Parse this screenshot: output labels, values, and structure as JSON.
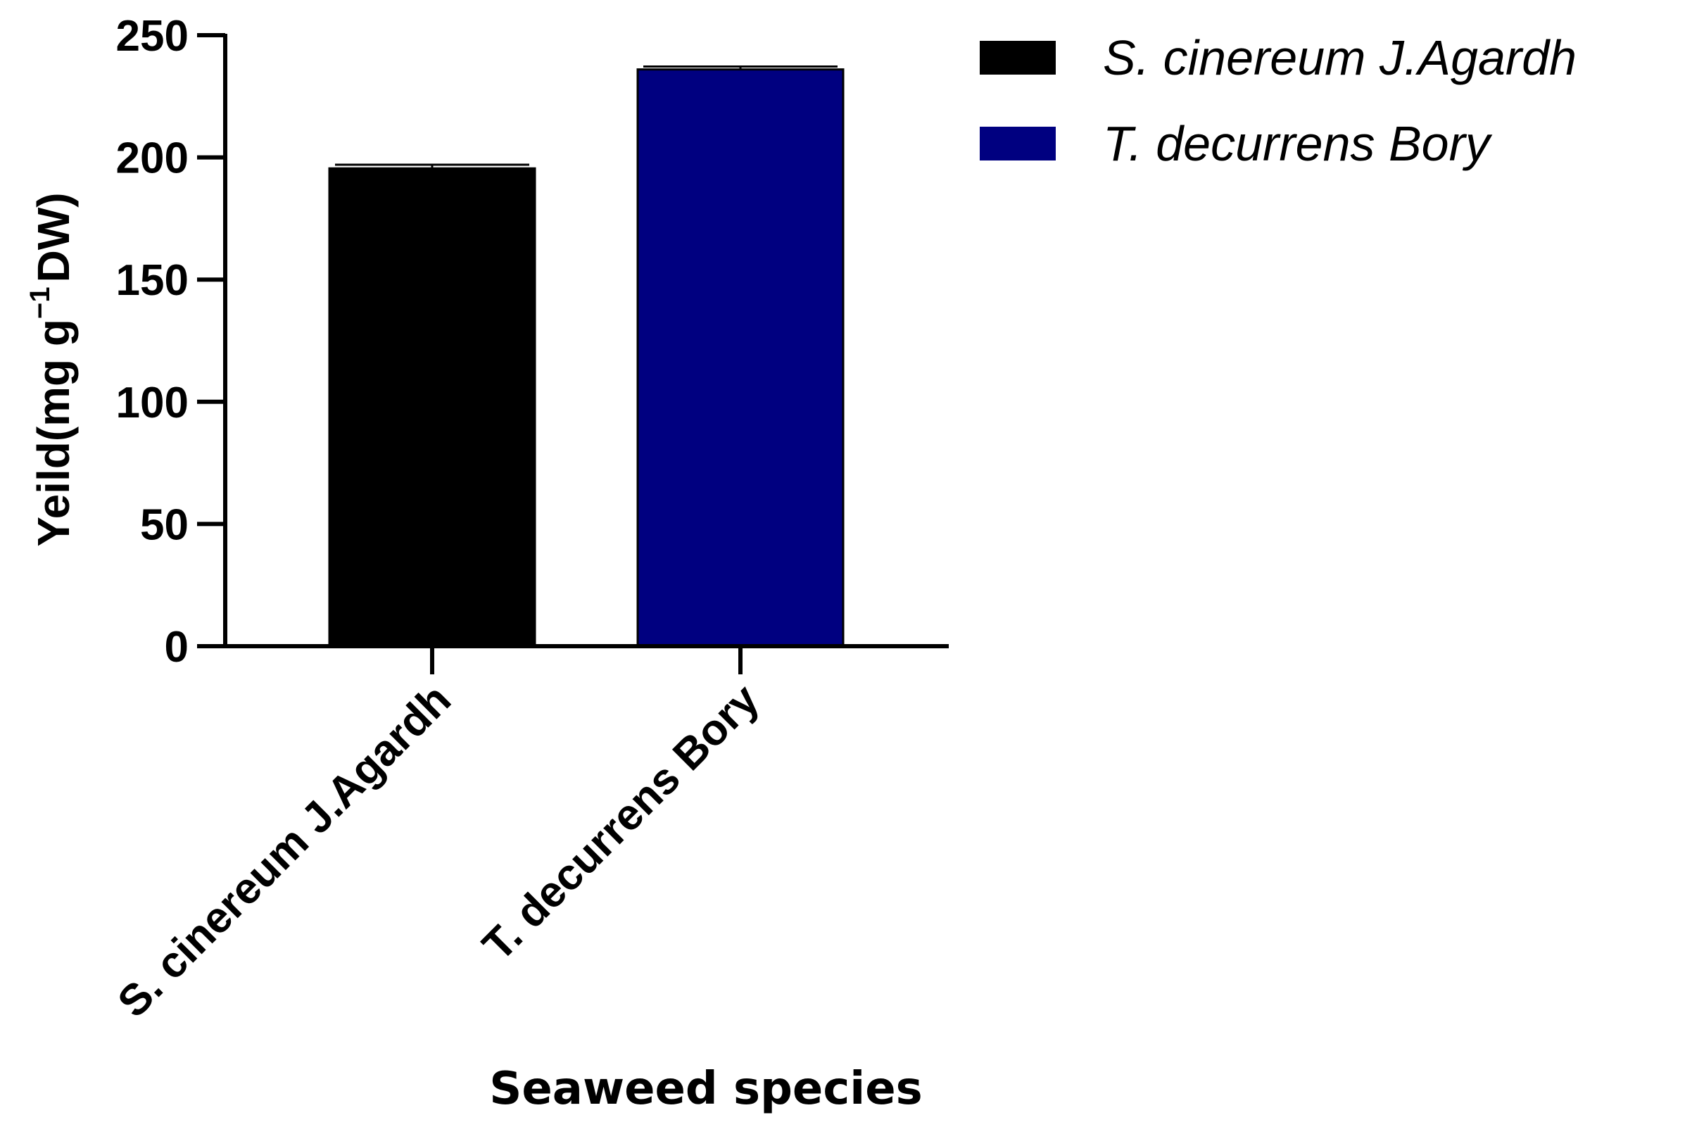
{
  "chart_data": {
    "type": "bar",
    "categories": [
      "S. cinereum J.Agardh",
      "T. decurrens Bory"
    ],
    "series": [
      {
        "name": "S. cinereum J.Agardh",
        "color": "#000000",
        "values": [
          195.5,
          null
        ],
        "errors": [
          1.5,
          null
        ]
      },
      {
        "name": "T. decurrens Bory",
        "color": "#000080",
        "values": [
          null,
          236
        ],
        "errors": [
          null,
          1.2
        ]
      }
    ],
    "values": [
      195.5,
      236
    ],
    "errors": [
      1.5,
      1.2
    ],
    "colors": [
      "#000000",
      "#000080"
    ],
    "ylim": [
      0,
      250
    ],
    "yticks": [
      0,
      50,
      100,
      150,
      200,
      250
    ],
    "ytick_labels": [
      "0",
      "50",
      "100",
      "150",
      "200",
      "250"
    ],
    "ylabel": {
      "prefix": "Yeild(mg g",
      "superscript": "−1",
      "suffix": "DW)"
    },
    "xlabel": "Seaweed species",
    "legend": {
      "position": "top-right",
      "items": [
        "S. cinereum J.Agardh",
        "T. decurrens Bory"
      ]
    },
    "grid": false
  }
}
